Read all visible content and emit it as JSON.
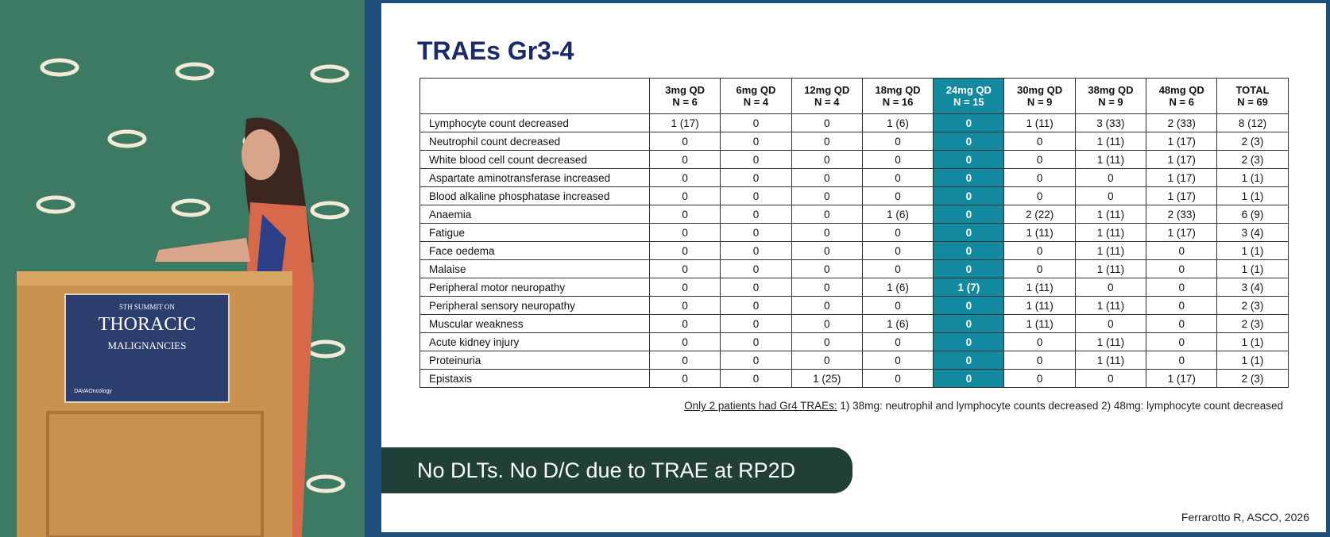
{
  "video": {
    "podium": {
      "line1": "5TH SUMMIT ON",
      "line2": "THORACIC",
      "line3": "MALIGNANCIES",
      "logo": "DAVAOncology"
    }
  },
  "slide": {
    "title": "TRAEs Gr3-4",
    "table": {
      "columns": [
        {
          "dose": "3mg QD",
          "n": "N = 6"
        },
        {
          "dose": "6mg QD",
          "n": "N = 4"
        },
        {
          "dose": "12mg QD",
          "n": "N = 4"
        },
        {
          "dose": "18mg QD",
          "n": "N = 16"
        },
        {
          "dose": "24mg QD",
          "n": "N = 15",
          "highlight": true
        },
        {
          "dose": "30mg QD",
          "n": "N = 9"
        },
        {
          "dose": "38mg QD",
          "n": "N = 9"
        },
        {
          "dose": "48mg QD",
          "n": "N = 6"
        },
        {
          "dose": "TOTAL",
          "n": "N = 69"
        }
      ],
      "rows": [
        {
          "label": "Lymphocyte count decreased",
          "cells": [
            "1 (17)",
            "0",
            "0",
            "1 (6)",
            "0",
            "1 (11)",
            "3 (33)",
            "2 (33)",
            "8 (12)"
          ]
        },
        {
          "label": "Neutrophil count decreased",
          "cells": [
            "0",
            "0",
            "0",
            "0",
            "0",
            "0",
            "1 (11)",
            "1 (17)",
            "2 (3)"
          ]
        },
        {
          "label": "White blood cell count decreased",
          "cells": [
            "0",
            "0",
            "0",
            "0",
            "0",
            "0",
            "1 (11)",
            "1 (17)",
            "2 (3)"
          ]
        },
        {
          "label": "Aspartate aminotransferase increased",
          "cells": [
            "0",
            "0",
            "0",
            "0",
            "0",
            "0",
            "0",
            "1 (17)",
            "1 (1)"
          ]
        },
        {
          "label": "Blood alkaline phosphatase increased",
          "cells": [
            "0",
            "0",
            "0",
            "0",
            "0",
            "0",
            "0",
            "1 (17)",
            "1 (1)"
          ]
        },
        {
          "label": "Anaemia",
          "cells": [
            "0",
            "0",
            "0",
            "1 (6)",
            "0",
            "2 (22)",
            "1 (11)",
            "2 (33)",
            "6 (9)"
          ]
        },
        {
          "label": "Fatigue",
          "cells": [
            "0",
            "0",
            "0",
            "0",
            "0",
            "1 (11)",
            "1 (11)",
            "1 (17)",
            "3 (4)"
          ]
        },
        {
          "label": "Face oedema",
          "cells": [
            "0",
            "0",
            "0",
            "0",
            "0",
            "0",
            "1 (11)",
            "0",
            "1 (1)"
          ]
        },
        {
          "label": "Malaise",
          "cells": [
            "0",
            "0",
            "0",
            "0",
            "0",
            "0",
            "1 (11)",
            "0",
            "1 (1)"
          ]
        },
        {
          "label": "Peripheral motor neuropathy",
          "cells": [
            "0",
            "0",
            "0",
            "1 (6)",
            "1 (7)",
            "1 (11)",
            "0",
            "0",
            "3 (4)"
          ]
        },
        {
          "label": "Peripheral sensory neuropathy",
          "cells": [
            "0",
            "0",
            "0",
            "0",
            "0",
            "1 (11)",
            "1 (11)",
            "0",
            "2 (3)"
          ]
        },
        {
          "label": "Muscular weakness",
          "cells": [
            "0",
            "0",
            "0",
            "1 (6)",
            "0",
            "1 (11)",
            "0",
            "0",
            "2 (3)"
          ]
        },
        {
          "label": "Acute kidney injury",
          "cells": [
            "0",
            "0",
            "0",
            "0",
            "0",
            "0",
            "1 (11)",
            "0",
            "1 (1)"
          ]
        },
        {
          "label": "Proteinuria",
          "cells": [
            "0",
            "0",
            "0",
            "0",
            "0",
            "0",
            "1 (11)",
            "0",
            "1 (1)"
          ]
        },
        {
          "label": "Epistaxis",
          "cells": [
            "0",
            "0",
            "1 (25)",
            "0",
            "0",
            "0",
            "0",
            "1 (17)",
            "2 (3)"
          ]
        }
      ]
    },
    "footnote": {
      "lead": "Only 2 patients had Gr4 TRAEs:",
      "text": "1) 38mg: neutrophil and lymphocyte counts decreased 2) 48mg: lymphocyte count decreased"
    },
    "banner": "No DLTs. No D/C due to TRAE at RP2D",
    "citation": "Ferrarotto R, ASCO, 2026"
  }
}
